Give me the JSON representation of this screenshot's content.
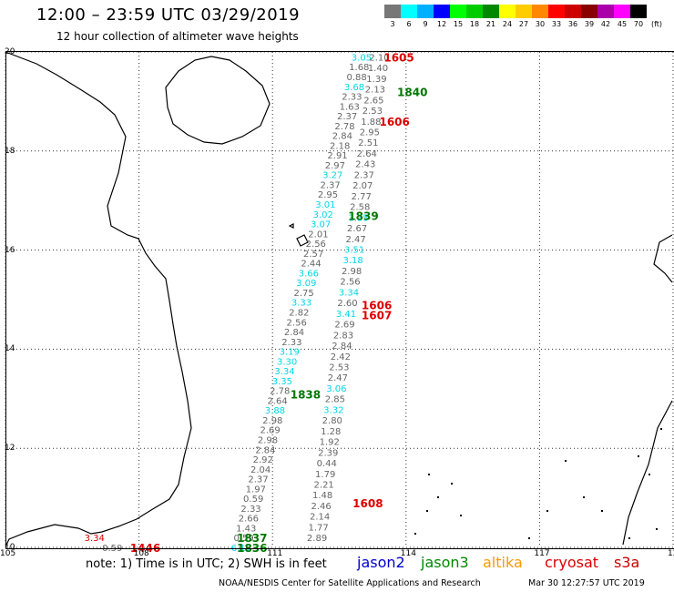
{
  "header": {
    "title": "12:00 – 23:59 UTC 03/29/2019",
    "subtitle": "12 hour collection of altimeter wave heights"
  },
  "color_scale": {
    "unit": "(ft)",
    "bins": [
      {
        "label": "3",
        "color": "#777777"
      },
      {
        "label": "6",
        "color": "#00ffff"
      },
      {
        "label": "9",
        "color": "#00b0ff"
      },
      {
        "label": "12",
        "color": "#0000ff"
      },
      {
        "label": "15",
        "color": "#00ff00"
      },
      {
        "label": "18",
        "color": "#00cc00"
      },
      {
        "label": "21",
        "color": "#008800"
      },
      {
        "label": "24",
        "color": "#ffff00"
      },
      {
        "label": "27",
        "color": "#ffcc00"
      },
      {
        "label": "30",
        "color": "#ff8800"
      },
      {
        "label": "33",
        "color": "#ff0000"
      },
      {
        "label": "36",
        "color": "#cc0000"
      },
      {
        "label": "39",
        "color": "#880000"
      },
      {
        "label": "42",
        "color": "#aa00aa"
      },
      {
        "label": "45",
        "color": "#ff00ff"
      },
      {
        "label": "70",
        "color": "#000000"
      }
    ]
  },
  "axes": {
    "lon_labels": [
      "105",
      "108",
      "111",
      "114",
      "117",
      "120"
    ],
    "lat_labels": [
      "20",
      "18",
      "16",
      "14",
      "12",
      "10"
    ]
  },
  "colors": {
    "gray": "#666666",
    "cyan": "#00d8e8",
    "green": "#007700",
    "red": "#dd0000",
    "jason2": "#0000cc",
    "jason3": "#008800",
    "altika": "#ff9900",
    "cryosat": "#dd0000",
    "s3a": "#cc0000"
  },
  "footer": {
    "note": "note: 1) Time is in UTC; 2) SWH is in feet",
    "legend": {
      "jason2": "jason2",
      "jason3": "jason3",
      "altika": "altika",
      "cryosat": "cryosat",
      "s3a": "s3a"
    },
    "credit": "NOAA/NESDIS Center for Satellite Applications and Research",
    "date": "Mar 30 12:27:57 UTC 2019"
  },
  "times": [
    {
      "text": "1605",
      "lon": 113.5,
      "lat": 19.9,
      "color": "red"
    },
    {
      "text": "1840",
      "lon": 113.8,
      "lat": 19.2,
      "color": "green"
    },
    {
      "text": "1606",
      "lon": 113.4,
      "lat": 18.6,
      "color": "red"
    },
    {
      "text": "1839",
      "lon": 112.7,
      "lat": 16.7,
      "color": "green"
    },
    {
      "text": "1606",
      "lon": 113.0,
      "lat": 14.9,
      "color": "red"
    },
    {
      "text": "1607",
      "lon": 113.0,
      "lat": 14.7,
      "color": "red"
    },
    {
      "text": "1838",
      "lon": 111.4,
      "lat": 13.1,
      "color": "green"
    },
    {
      "text": "1608",
      "lon": 112.8,
      "lat": 10.9,
      "color": "red"
    },
    {
      "text": "1837",
      "lon": 110.2,
      "lat": 10.2,
      "color": "green"
    },
    {
      "text": "1836",
      "lon": 110.2,
      "lat": 10.0,
      "color": "green"
    },
    {
      "text": "1446",
      "lon": 107.8,
      "lat": 10.0,
      "color": "red"
    }
  ],
  "tracks": [
    {
      "name": "track-a",
      "start": [
        113.0,
        19.9
      ],
      "end": [
        110.3,
        10.0
      ],
      "points": [
        {
          "v": "3.05",
          "c": "cyan"
        },
        {
          "v": "1.68",
          "c": "gray"
        },
        {
          "v": "0.88",
          "c": "gray"
        },
        {
          "v": "3.68",
          "c": "cyan"
        },
        {
          "v": "2.33",
          "c": "gray"
        },
        {
          "v": "1.63",
          "c": "gray"
        },
        {
          "v": "2.37",
          "c": "gray"
        },
        {
          "v": "2.78",
          "c": "gray"
        },
        {
          "v": "2.84",
          "c": "gray"
        },
        {
          "v": "2.18",
          "c": "gray"
        },
        {
          "v": "2.91",
          "c": "gray"
        },
        {
          "v": "2.97",
          "c": "gray"
        },
        {
          "v": "3.27",
          "c": "cyan"
        },
        {
          "v": "2.37",
          "c": "gray"
        },
        {
          "v": "2.95",
          "c": "gray"
        },
        {
          "v": "3.01",
          "c": "cyan"
        },
        {
          "v": "3.02",
          "c": "cyan"
        },
        {
          "v": "3.07",
          "c": "cyan"
        },
        {
          "v": "2.01",
          "c": "gray"
        },
        {
          "v": "2.56",
          "c": "gray"
        },
        {
          "v": "2.57",
          "c": "gray"
        },
        {
          "v": "2.44",
          "c": "gray"
        },
        {
          "v": "3.66",
          "c": "cyan"
        },
        {
          "v": "3.09",
          "c": "cyan"
        },
        {
          "v": "2.75",
          "c": "gray"
        },
        {
          "v": "3.33",
          "c": "cyan"
        },
        {
          "v": "2.82",
          "c": "gray"
        },
        {
          "v": "2.56",
          "c": "gray"
        },
        {
          "v": "2.84",
          "c": "gray"
        },
        {
          "v": "2.33",
          "c": "gray"
        },
        {
          "v": "3.19",
          "c": "cyan"
        },
        {
          "v": "3.30",
          "c": "cyan"
        },
        {
          "v": "3.34",
          "c": "cyan"
        },
        {
          "v": "3.35",
          "c": "cyan"
        },
        {
          "v": "2.78",
          "c": "gray"
        },
        {
          "v": "2.64",
          "c": "gray"
        },
        {
          "v": "3.88",
          "c": "cyan"
        },
        {
          "v": "2.98",
          "c": "gray"
        },
        {
          "v": "2.69",
          "c": "gray"
        },
        {
          "v": "2.98",
          "c": "gray"
        },
        {
          "v": "2.84",
          "c": "gray"
        },
        {
          "v": "2.92",
          "c": "gray"
        },
        {
          "v": "2.04",
          "c": "gray"
        },
        {
          "v": "2.37",
          "c": "gray"
        },
        {
          "v": "1.97",
          "c": "gray"
        },
        {
          "v": "0.59",
          "c": "gray"
        },
        {
          "v": "2.33",
          "c": "gray"
        },
        {
          "v": "2.66",
          "c": "gray"
        },
        {
          "v": "1.43",
          "c": "gray"
        },
        {
          "v": "0.59",
          "c": "gray"
        },
        {
          "v": "6.17",
          "c": "cyan"
        }
      ]
    },
    {
      "name": "track-b",
      "start": [
        113.4,
        19.9
      ],
      "end": [
        112.0,
        10.2
      ],
      "points": [
        {
          "v": "2.10",
          "c": "gray"
        },
        {
          "v": "1.40",
          "c": "gray"
        },
        {
          "v": "1.39",
          "c": "gray"
        },
        {
          "v": "2.13",
          "c": "gray"
        },
        {
          "v": "2.65",
          "c": "gray"
        },
        {
          "v": "2.53",
          "c": "gray"
        },
        {
          "v": "1.88",
          "c": "gray"
        },
        {
          "v": "2.95",
          "c": "gray"
        },
        {
          "v": "2.51",
          "c": "gray"
        },
        {
          "v": "2.64",
          "c": "gray"
        },
        {
          "v": "2.43",
          "c": "gray"
        },
        {
          "v": "2.37",
          "c": "gray"
        },
        {
          "v": "2.07",
          "c": "gray"
        },
        {
          "v": "2.77",
          "c": "gray"
        },
        {
          "v": "2.58",
          "c": "gray"
        },
        {
          "v": "3.35",
          "c": "cyan"
        },
        {
          "v": "2.67",
          "c": "gray"
        },
        {
          "v": "2.47",
          "c": "gray"
        },
        {
          "v": "3.51",
          "c": "cyan"
        },
        {
          "v": "3.18",
          "c": "cyan"
        },
        {
          "v": "2.98",
          "c": "gray"
        },
        {
          "v": "2.56",
          "c": "gray"
        },
        {
          "v": "3.34",
          "c": "cyan"
        },
        {
          "v": "2.60",
          "c": "gray"
        },
        {
          "v": "3.41",
          "c": "cyan"
        },
        {
          "v": "2.69",
          "c": "gray"
        },
        {
          "v": "2.83",
          "c": "gray"
        },
        {
          "v": "2.84",
          "c": "gray"
        },
        {
          "v": "2.42",
          "c": "gray"
        },
        {
          "v": "2.53",
          "c": "gray"
        },
        {
          "v": "2.47",
          "c": "gray"
        },
        {
          "v": "3.06",
          "c": "cyan"
        },
        {
          "v": "2.85",
          "c": "gray"
        },
        {
          "v": "3.32",
          "c": "cyan"
        },
        {
          "v": "2.80",
          "c": "gray"
        },
        {
          "v": "1.28",
          "c": "gray"
        },
        {
          "v": "1.92",
          "c": "gray"
        },
        {
          "v": "2.39",
          "c": "gray"
        },
        {
          "v": "0.44",
          "c": "gray"
        },
        {
          "v": "1.79",
          "c": "gray"
        },
        {
          "v": "2.21",
          "c": "gray"
        },
        {
          "v": "1.48",
          "c": "gray"
        },
        {
          "v": "2.46",
          "c": "gray"
        },
        {
          "v": "2.14",
          "c": "gray"
        },
        {
          "v": "1.77",
          "c": "gray"
        },
        {
          "v": "2.89",
          "c": "gray"
        }
      ]
    },
    {
      "name": "track-c",
      "start": [
        107.0,
        10.2
      ],
      "end": [
        107.4,
        10.0
      ],
      "points": [
        {
          "v": "3.34",
          "c": "red"
        },
        {
          "v": "0.59",
          "c": "gray"
        }
      ]
    }
  ]
}
